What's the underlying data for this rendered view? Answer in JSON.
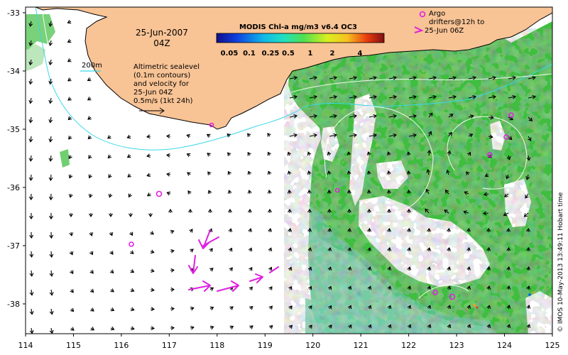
{
  "map": {
    "date": "25-Jun-2007",
    "time": "04Z",
    "colorbar_title": "MODIS Chl-a mg/m3 v6.4 OC3",
    "colorbar_ticks": [
      "0.05",
      "0.1",
      "0.25",
      "0.5",
      "1",
      "2",
      "4"
    ],
    "contour_legend": "200m",
    "altimetry_note": [
      "Altimetric sealevel",
      "(0.1m contours)",
      "and velocity for",
      "25-Jun 04Z"
    ],
    "velocity_scale_label": "0.5m/s (1kt 24h)",
    "argo_legend": [
      "Argo",
      "drifters@12h to",
      "25-Jun 06Z"
    ],
    "watermark": "© IMOS 10-May-2013 13:49:11 Hobart time",
    "x_ticks": [
      "114",
      "115",
      "116",
      "117",
      "118",
      "119",
      "120",
      "121",
      "122",
      "123",
      "124",
      "125"
    ],
    "y_ticks": [
      "-33",
      "-34",
      "-35",
      "-36",
      "-37",
      "-38"
    ],
    "colors": {
      "land": "#f8c395",
      "coast": "#000000",
      "shelf_contour": "#39d8e8",
      "chl_green": "#3fbe3f",
      "chl_light": "#7ed27e",
      "argo": "#e020e0",
      "vectors": "#000000"
    }
  }
}
